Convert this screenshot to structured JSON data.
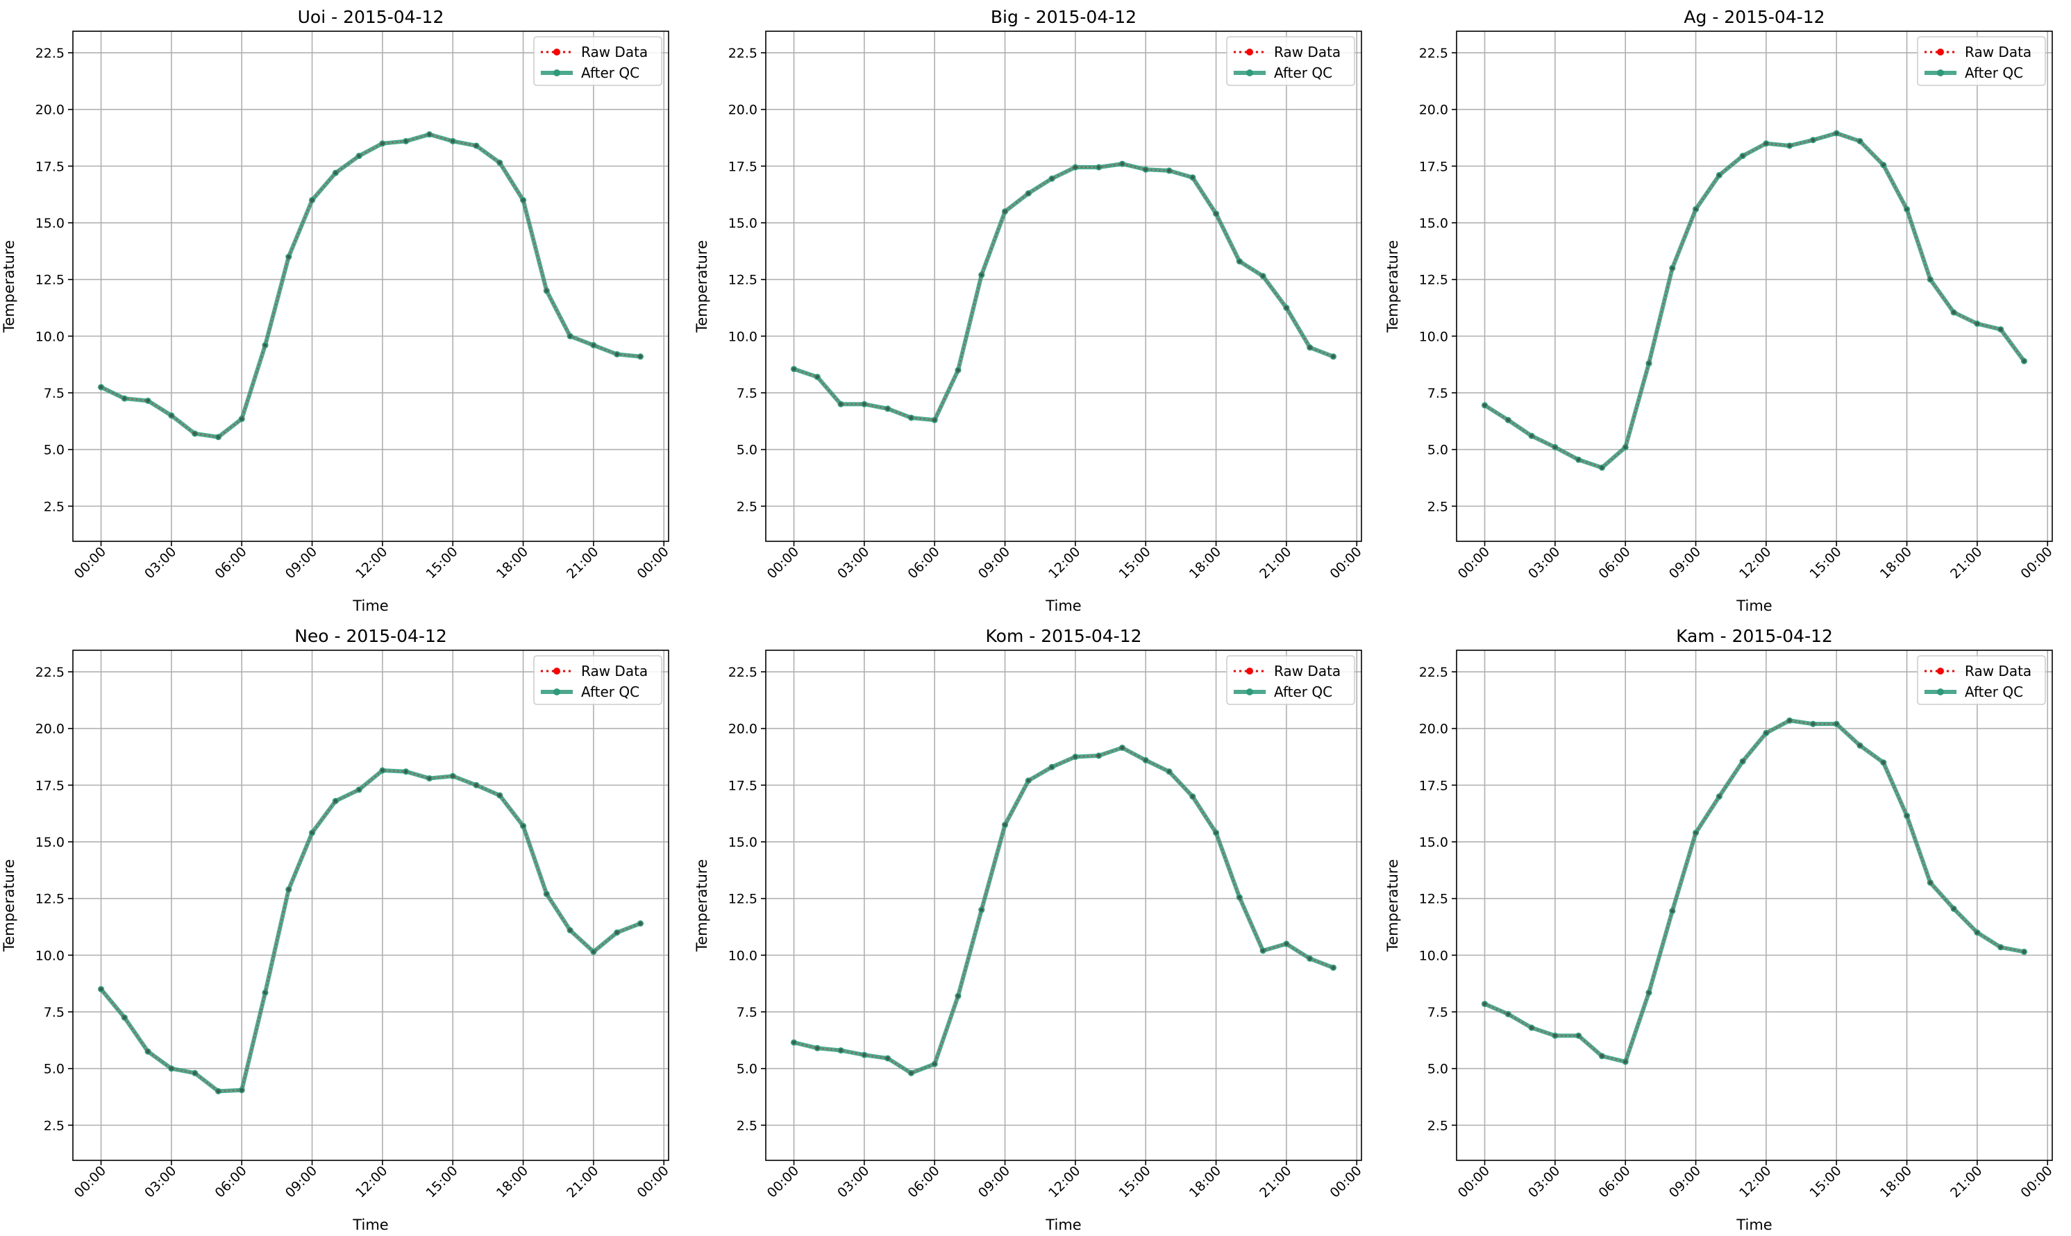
{
  "chart_data": [
    {
      "type": "line",
      "title": "Uoi - 2015-04-12",
      "xlabel": "Time",
      "ylabel": "Temperature",
      "ylim": [
        0.95,
        23.45
      ],
      "yticks": [
        2.5,
        5.0,
        7.5,
        10.0,
        12.5,
        15.0,
        17.5,
        20.0,
        22.5
      ],
      "xticks": [
        "00:00",
        "03:00",
        "06:00",
        "09:00",
        "12:00",
        "15:00",
        "18:00",
        "21:00",
        "00:00"
      ],
      "grid": true,
      "legend_position": "top-right",
      "series": [
        {
          "name": "Raw Data",
          "color": "#ff0000",
          "values": [
            7.75,
            7.25,
            7.15,
            6.5,
            5.7,
            5.55,
            6.35,
            9.6,
            13.5,
            16.0,
            17.2,
            17.95,
            18.5,
            18.6,
            18.9,
            18.6,
            18.4,
            17.65,
            16.0,
            12.0,
            10.0,
            9.6,
            9.2,
            9.1
          ]
        },
        {
          "name": "After QC",
          "color": "#2e9a7a",
          "values": [
            7.75,
            7.25,
            7.15,
            6.5,
            5.7,
            5.55,
            6.35,
            9.6,
            13.5,
            16.0,
            17.2,
            17.95,
            18.5,
            18.6,
            18.9,
            18.6,
            18.4,
            17.65,
            16.0,
            12.0,
            10.0,
            9.6,
            9.2,
            9.1
          ]
        }
      ]
    },
    {
      "type": "line",
      "title": "Big - 2015-04-12",
      "xlabel": "Time",
      "ylabel": "Temperature",
      "ylim": [
        0.95,
        23.45
      ],
      "yticks": [
        2.5,
        5.0,
        7.5,
        10.0,
        12.5,
        15.0,
        17.5,
        20.0,
        22.5
      ],
      "xticks": [
        "00:00",
        "03:00",
        "06:00",
        "09:00",
        "12:00",
        "15:00",
        "18:00",
        "21:00",
        "00:00"
      ],
      "grid": true,
      "legend_position": "top-right",
      "series": [
        {
          "name": "Raw Data",
          "color": "#ff0000",
          "values": [
            8.55,
            8.2,
            7.0,
            7.0,
            6.8,
            6.4,
            6.3,
            8.5,
            12.7,
            15.5,
            16.3,
            16.95,
            17.45,
            17.45,
            17.6,
            17.35,
            17.3,
            17.0,
            15.4,
            13.3,
            12.65,
            11.25,
            9.5,
            9.1
          ]
        },
        {
          "name": "After QC",
          "color": "#2e9a7a",
          "values": [
            8.55,
            8.2,
            7.0,
            7.0,
            6.8,
            6.4,
            6.3,
            8.5,
            12.7,
            15.5,
            16.3,
            16.95,
            17.45,
            17.45,
            17.6,
            17.35,
            17.3,
            17.0,
            15.4,
            13.3,
            12.65,
            11.25,
            9.5,
            9.1
          ]
        }
      ]
    },
    {
      "type": "line",
      "title": "Ag - 2015-04-12",
      "xlabel": "Time",
      "ylabel": "Temperature",
      "ylim": [
        0.95,
        23.45
      ],
      "yticks": [
        2.5,
        5.0,
        7.5,
        10.0,
        12.5,
        15.0,
        17.5,
        20.0,
        22.5
      ],
      "xticks": [
        "00:00",
        "03:00",
        "06:00",
        "09:00",
        "12:00",
        "15:00",
        "18:00",
        "21:00",
        "00:00"
      ],
      "grid": true,
      "legend_position": "top-right",
      "series": [
        {
          "name": "Raw Data",
          "color": "#ff0000",
          "values": [
            6.95,
            6.3,
            5.6,
            5.1,
            4.55,
            4.2,
            5.1,
            8.8,
            13.0,
            15.6,
            17.1,
            17.95,
            18.5,
            18.4,
            18.65,
            18.95,
            18.6,
            17.55,
            15.6,
            12.5,
            11.05,
            10.55,
            10.3,
            8.9
          ]
        },
        {
          "name": "After QC",
          "color": "#2e9a7a",
          "values": [
            6.95,
            6.3,
            5.6,
            5.1,
            4.55,
            4.2,
            5.1,
            8.8,
            13.0,
            15.6,
            17.1,
            17.95,
            18.5,
            18.4,
            18.65,
            18.95,
            18.6,
            17.55,
            15.6,
            12.5,
            11.05,
            10.55,
            10.3,
            8.9
          ]
        }
      ]
    },
    {
      "type": "line",
      "title": "Neo - 2015-04-12",
      "xlabel": "Time",
      "ylabel": "Temperature",
      "ylim": [
        0.95,
        23.45
      ],
      "yticks": [
        2.5,
        5.0,
        7.5,
        10.0,
        12.5,
        15.0,
        17.5,
        20.0,
        22.5
      ],
      "xticks": [
        "00:00",
        "03:00",
        "06:00",
        "09:00",
        "12:00",
        "15:00",
        "18:00",
        "21:00",
        "00:00"
      ],
      "grid": true,
      "legend_position": "top-right",
      "series": [
        {
          "name": "Raw Data",
          "color": "#ff0000",
          "values": [
            8.5,
            7.25,
            5.75,
            5.0,
            4.8,
            4.0,
            4.05,
            8.35,
            12.9,
            15.4,
            16.8,
            17.3,
            18.15,
            18.1,
            17.8,
            17.9,
            17.5,
            17.05,
            15.7,
            12.7,
            11.1,
            10.15,
            11.0,
            11.4
          ]
        },
        {
          "name": "After QC",
          "color": "#2e9a7a",
          "values": [
            8.5,
            7.25,
            5.75,
            5.0,
            4.8,
            4.0,
            4.05,
            8.35,
            12.9,
            15.4,
            16.8,
            17.3,
            18.15,
            18.1,
            17.8,
            17.9,
            17.5,
            17.05,
            15.7,
            12.7,
            11.1,
            10.15,
            11.0,
            11.4
          ]
        }
      ]
    },
    {
      "type": "line",
      "title": "Kom - 2015-04-12",
      "xlabel": "Time",
      "ylabel": "Temperature",
      "ylim": [
        0.95,
        23.45
      ],
      "yticks": [
        2.5,
        5.0,
        7.5,
        10.0,
        12.5,
        15.0,
        17.5,
        20.0,
        22.5
      ],
      "xticks": [
        "00:00",
        "03:00",
        "06:00",
        "09:00",
        "12:00",
        "15:00",
        "18:00",
        "21:00",
        "00:00"
      ],
      "grid": true,
      "legend_position": "top-right",
      "series": [
        {
          "name": "Raw Data",
          "color": "#ff0000",
          "values": [
            6.15,
            5.9,
            5.8,
            5.6,
            5.45,
            4.8,
            5.2,
            8.2,
            12.0,
            15.75,
            17.7,
            18.3,
            18.75,
            18.8,
            19.15,
            18.6,
            18.1,
            17.0,
            15.4,
            12.55,
            10.2,
            10.5,
            9.85,
            9.45
          ]
        },
        {
          "name": "After QC",
          "color": "#2e9a7a",
          "values": [
            6.15,
            5.9,
            5.8,
            5.6,
            5.45,
            4.8,
            5.2,
            8.2,
            12.0,
            15.75,
            17.7,
            18.3,
            18.75,
            18.8,
            19.15,
            18.6,
            18.1,
            17.0,
            15.4,
            12.55,
            10.2,
            10.5,
            9.85,
            9.45
          ]
        }
      ]
    },
    {
      "type": "line",
      "title": "Kam - 2015-04-12",
      "xlabel": "Time",
      "ylabel": "Temperature",
      "ylim": [
        0.95,
        23.45
      ],
      "yticks": [
        2.5,
        5.0,
        7.5,
        10.0,
        12.5,
        15.0,
        17.5,
        20.0,
        22.5
      ],
      "xticks": [
        "00:00",
        "03:00",
        "06:00",
        "09:00",
        "12:00",
        "15:00",
        "18:00",
        "21:00",
        "00:00"
      ],
      "grid": true,
      "legend_position": "top-right",
      "series": [
        {
          "name": "Raw Data",
          "color": "#ff0000",
          "values": [
            7.85,
            7.4,
            6.8,
            6.45,
            6.45,
            5.55,
            5.3,
            8.35,
            11.95,
            15.4,
            17.0,
            18.55,
            19.8,
            20.35,
            20.2,
            20.2,
            19.25,
            18.5,
            16.15,
            13.2,
            12.05,
            11.0,
            10.35,
            10.15
          ]
        },
        {
          "name": "After QC",
          "color": "#2e9a7a",
          "values": [
            7.85,
            7.4,
            6.8,
            6.45,
            6.45,
            5.55,
            5.3,
            8.35,
            11.95,
            15.4,
            17.0,
            18.55,
            19.8,
            20.35,
            20.2,
            20.2,
            19.25,
            18.5,
            16.15,
            13.2,
            12.05,
            11.0,
            10.35,
            10.15
          ]
        }
      ]
    }
  ]
}
